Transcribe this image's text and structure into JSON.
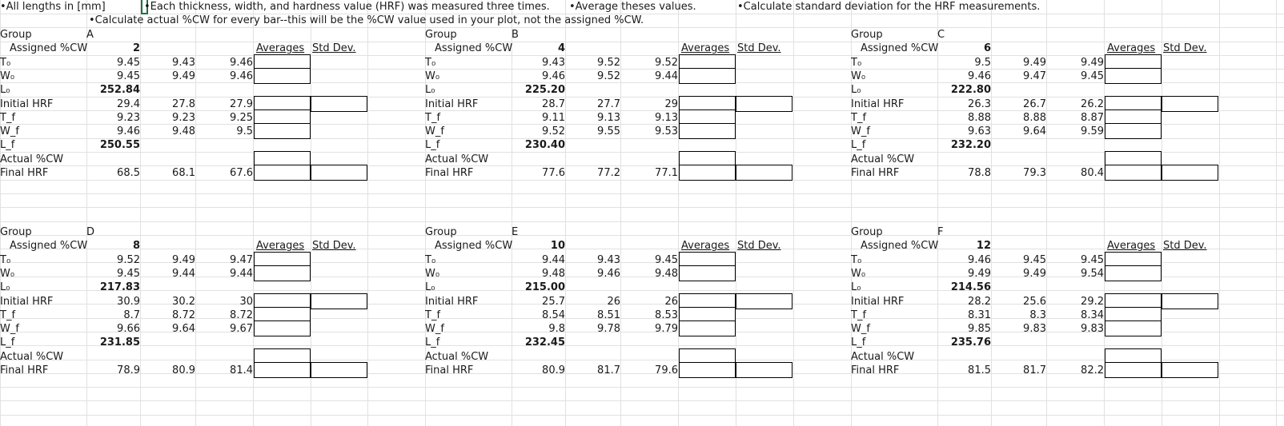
{
  "notes": {
    "lengths": "•All lengths in [mm]",
    "measured": "•Each thickness, width, and hardness value (HRF) was measured three times.",
    "average": "•Average theses values.",
    "stddev": "•Calculate standard deviation for the HRF measurements.",
    "actual_cw": "•Calculate actual %CW for every bar--this will be the %CW value used in your plot, not the assigned %CW."
  },
  "labels": {
    "group": "Group",
    "assigned": "Assigned %CW",
    "averages": "Averages",
    "std_dev": "Std Dev.",
    "T0": "T₀",
    "W0": "W₀",
    "L0": "L₀",
    "initial_hrf": "Initial HRF",
    "Tf": "T_f",
    "Wf": "W_f",
    "Lf": "L_f",
    "actual_cw": "Actual %CW",
    "final_hrf": "Final HRF"
  },
  "groups": [
    {
      "name": "A",
      "assigned": "2",
      "T0": [
        "9.45",
        "9.43",
        "9.46"
      ],
      "W0": [
        "9.45",
        "9.49",
        "9.46"
      ],
      "L0": "252.84",
      "hrf0": [
        "29.4",
        "27.8",
        "27.9"
      ],
      "Tf": [
        "9.23",
        "9.23",
        "9.25"
      ],
      "Wf": [
        "9.46",
        "9.48",
        "9.5"
      ],
      "Lf": "250.55",
      "hrff": [
        "68.5",
        "68.1",
        "67.6"
      ]
    },
    {
      "name": "B",
      "assigned": "4",
      "T0": [
        "9.43",
        "9.52",
        "9.52"
      ],
      "W0": [
        "9.46",
        "9.52",
        "9.44"
      ],
      "L0": "225.20",
      "hrf0": [
        "28.7",
        "27.7",
        "29"
      ],
      "Tf": [
        "9.11",
        "9.13",
        "9.13"
      ],
      "Wf": [
        "9.52",
        "9.55",
        "9.53"
      ],
      "Lf": "230.40",
      "hrff": [
        "77.6",
        "77.2",
        "77.1"
      ]
    },
    {
      "name": "C",
      "assigned": "6",
      "T0": [
        "9.5",
        "9.49",
        "9.49"
      ],
      "W0": [
        "9.46",
        "9.47",
        "9.45"
      ],
      "L0": "222.80",
      "hrf0": [
        "26.3",
        "26.7",
        "26.2"
      ],
      "Tf": [
        "8.88",
        "8.88",
        "8.87"
      ],
      "Wf": [
        "9.63",
        "9.64",
        "9.59"
      ],
      "Lf": "232.20",
      "hrff": [
        "78.8",
        "79.3",
        "80.4"
      ]
    },
    {
      "name": "D",
      "assigned": "8",
      "T0": [
        "9.52",
        "9.49",
        "9.47"
      ],
      "W0": [
        "9.45",
        "9.44",
        "9.44"
      ],
      "L0": "217.83",
      "hrf0": [
        "30.9",
        "30.2",
        "30"
      ],
      "Tf": [
        "8.7",
        "8.72",
        "8.72"
      ],
      "Wf": [
        "9.66",
        "9.64",
        "9.67"
      ],
      "Lf": "231.85",
      "hrff": [
        "78.9",
        "80.9",
        "81.4"
      ]
    },
    {
      "name": "E",
      "assigned": "10",
      "T0": [
        "9.44",
        "9.43",
        "9.45"
      ],
      "W0": [
        "9.48",
        "9.46",
        "9.48"
      ],
      "L0": "215.00",
      "hrf0": [
        "25.7",
        "26",
        "26"
      ],
      "Tf": [
        "8.54",
        "8.51",
        "8.53"
      ],
      "Wf": [
        "9.8",
        "9.78",
        "9.79"
      ],
      "Lf": "232.45",
      "hrff": [
        "80.9",
        "81.7",
        "79.6"
      ]
    },
    {
      "name": "F",
      "assigned": "12",
      "T0": [
        "9.46",
        "9.45",
        "9.45"
      ],
      "W0": [
        "9.49",
        "9.49",
        "9.54"
      ],
      "L0": "214.56",
      "hrf0": [
        "28.2",
        "25.6",
        "29.2"
      ],
      "Tf": [
        "8.31",
        "8.3",
        "8.34"
      ],
      "Wf": [
        "9.85",
        "9.83",
        "9.83"
      ],
      "Lf": "235.76",
      "hrff": [
        "81.5",
        "81.7",
        "82.2"
      ]
    }
  ]
}
